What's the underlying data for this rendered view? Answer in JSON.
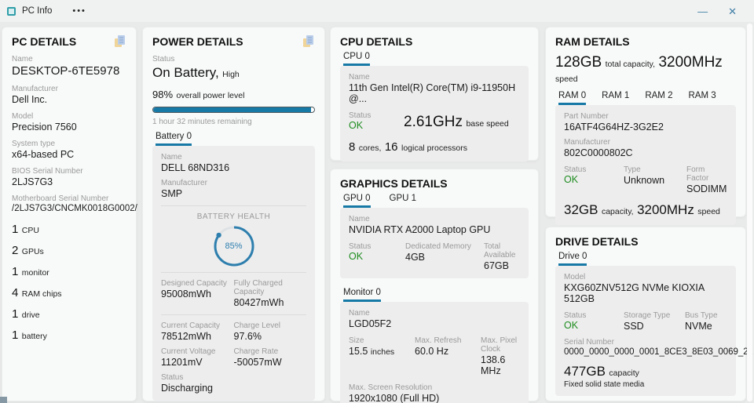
{
  "window": {
    "title": "PC Info",
    "menu_dots": "•••",
    "minimize_glyph": "—",
    "close_glyph": "✕"
  },
  "colors": {
    "accent_blue": "#1779a6",
    "ok_green": "#1e8c1e",
    "ring_blue": "#2e7fae",
    "copy_icon_blue": "#b9cdea",
    "copy_icon_yellow": "#f0d59b"
  },
  "pc_details": {
    "title": "PC DETAILS",
    "fields": [
      {
        "label": "Name",
        "value": "DESKTOP-6TE5978"
      },
      {
        "label": "Manufacturer",
        "value": "Dell Inc."
      },
      {
        "label": "Model",
        "value": "Precision 7560"
      },
      {
        "label": "System type",
        "value": "x64-based PC"
      },
      {
        "label": "BIOS Serial Number",
        "value": "2LJS7G3"
      },
      {
        "label": "Motherboard Serial Number",
        "value": "/2LJS7G3/CNCMK0018G0002/"
      }
    ],
    "summary": [
      {
        "count": "1",
        "label": "CPU"
      },
      {
        "count": "2",
        "label": "GPUs"
      },
      {
        "count": "1",
        "label": "monitor"
      },
      {
        "count": "4",
        "label": "RAM chips"
      },
      {
        "count": "1",
        "label": "drive"
      },
      {
        "count": "1",
        "label": "battery"
      }
    ]
  },
  "power_details": {
    "title": "POWER DETAILS",
    "status_label": "Status",
    "status_value": "On Battery,",
    "status_qualifier": "High",
    "level_percent": "98%",
    "level_label": "overall power level",
    "progress_percent": 98,
    "time_remaining": "1 hour 32 minutes remaining",
    "tab": "Battery 0",
    "battery": {
      "name_label": "Name",
      "name": "DELL 68ND316",
      "manufacturer_label": "Manufacturer",
      "manufacturer": "SMP",
      "health_title": "BATTERY HEALTH",
      "health_percent": "85%",
      "health_value": 85,
      "stats": [
        {
          "label": "Designed Capacity",
          "value": "95008mWh"
        },
        {
          "label": "Fully Charged Capacity",
          "value": "80427mWh"
        },
        {
          "label": "Current Capacity",
          "value": "78512mWh"
        },
        {
          "label": "Charge Level",
          "value": "97.6%"
        },
        {
          "label": "Current Voltage",
          "value": "11201mV"
        },
        {
          "label": "Charge Rate",
          "value": "-50057mW"
        }
      ],
      "status_label": "Status",
      "status_value": "Discharging"
    }
  },
  "cpu_details": {
    "title": "CPU DETAILS",
    "tab": "CPU 0",
    "cpu": {
      "name_label": "Name",
      "name": "11th Gen Intel(R) Core(TM) i9-11950H @...",
      "status_label": "Status",
      "status_value": "OK",
      "base_speed": "2.61GHz",
      "base_speed_label": "base speed",
      "cores": "8",
      "cores_label": "cores,",
      "logical": "16",
      "logical_label": "logical processors"
    }
  },
  "graphics_details": {
    "title": "GRAPHICS DETAILS",
    "gpu_tabs": [
      "GPU 0",
      "GPU 1"
    ],
    "gpu": {
      "name_label": "Name",
      "name": "NVIDIA RTX A2000 Laptop GPU",
      "stats": [
        {
          "label": "Status",
          "value": "OK"
        },
        {
          "label": "Dedicated Memory",
          "value": "4GB"
        },
        {
          "label": "Total Available",
          "value": "67GB"
        }
      ]
    },
    "monitor_tab": "Monitor 0",
    "monitor": {
      "name_label": "Name",
      "name": "LGD05F2",
      "stats": [
        {
          "label": "Size",
          "value": "15.5",
          "unit": "inches"
        },
        {
          "label": "Max. Refresh",
          "value": "60.0 Hz",
          "unit": ""
        },
        {
          "label": "Max. Pixel Clock",
          "value": "138.6 MHz",
          "unit": ""
        }
      ],
      "resolution_label": "Max. Screen Resolution",
      "resolution": "1920x1080 (Full HD)"
    }
  },
  "ram_details": {
    "title": "RAM DETAILS",
    "total_capacity": "128GB",
    "total_capacity_label": "total capacity,",
    "speed": "3200MHz",
    "speed_label": "speed",
    "tabs": [
      "RAM 0",
      "RAM 1",
      "RAM 2",
      "RAM 3"
    ],
    "ram": {
      "part_number_label": "Part Number",
      "part_number": "16ATF4G64HZ-3G2E2",
      "manufacturer_label": "Manufacturer",
      "manufacturer": "802C0000802C",
      "stats": [
        {
          "label": "Status",
          "value": "OK"
        },
        {
          "label": "Type",
          "value": "Unknown"
        },
        {
          "label": "Form Factor",
          "value": "SODIMM"
        }
      ],
      "capacity": "32GB",
      "capacity_label": "capacity,",
      "speed": "3200MHz",
      "speed_label": "speed"
    }
  },
  "drive_details": {
    "title": "DRIVE DETAILS",
    "tab": "Drive 0",
    "drive": {
      "model_label": "Model",
      "model": "KXG60ZNV512G NVMe KIOXIA 512GB",
      "stats": [
        {
          "label": "Status",
          "value": "OK"
        },
        {
          "label": "Storage Type",
          "value": "SSD"
        },
        {
          "label": "Bus Type",
          "value": "NVMe"
        }
      ],
      "serial_label": "Serial Number",
      "serial": "0000_0000_0000_0001_8CE3_8E03_0069_2...",
      "capacity": "477GB",
      "capacity_label": "capacity",
      "media_type": "Fixed solid state media"
    }
  }
}
